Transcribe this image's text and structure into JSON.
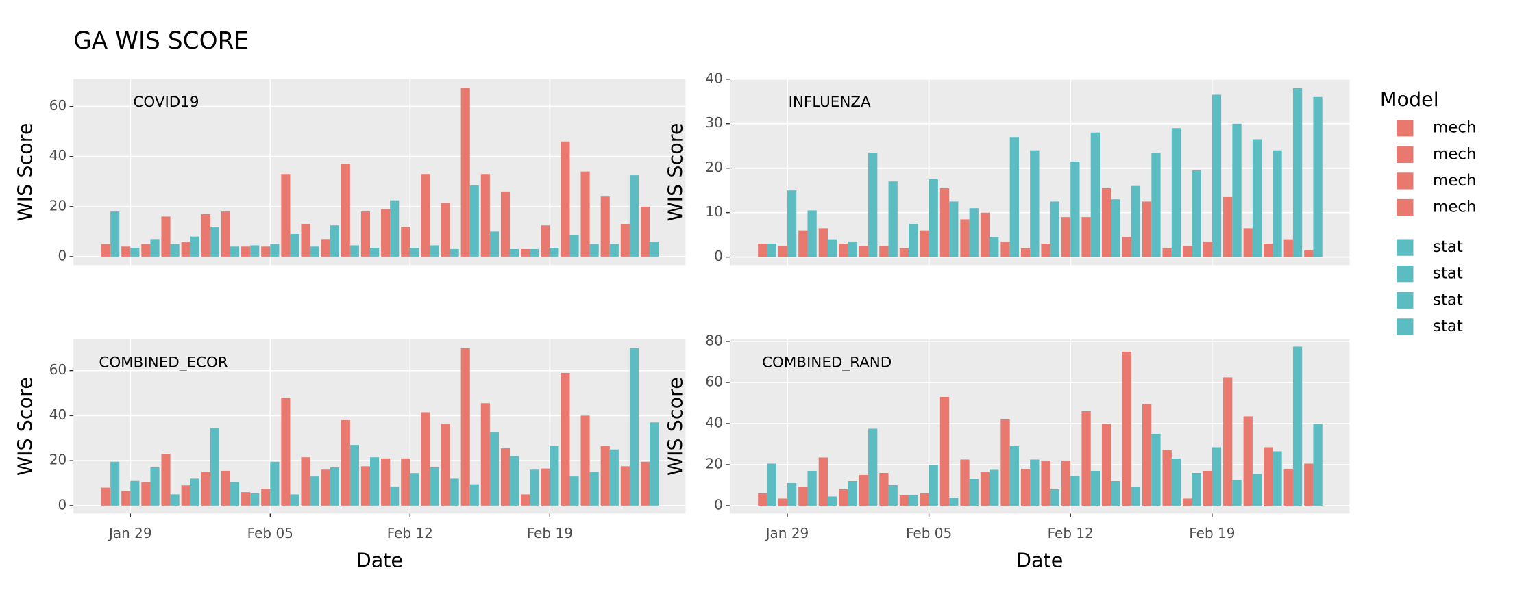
{
  "title": "GA WIS SCORE",
  "legend": {
    "title": "Model",
    "entries": [
      {
        "name": "mech",
        "color": "#e9786f"
      },
      {
        "name": "mech",
        "color": "#e9786f"
      },
      {
        "name": "mech",
        "color": "#e9786f"
      },
      {
        "name": "mech",
        "color": "#e9786f"
      },
      {
        "name": "stat",
        "color": "#5bbdc2"
      },
      {
        "name": "stat",
        "color": "#5bbdc2"
      },
      {
        "name": "stat",
        "color": "#5bbdc2"
      },
      {
        "name": "stat",
        "color": "#5bbdc2"
      }
    ]
  },
  "chart_data": [
    {
      "type": "bar",
      "title": "COVID19",
      "y_label": "WIS Score",
      "grid": true,
      "categories": [
        "Jan 28",
        "Jan 29",
        "Jan 30",
        "Jan 31",
        "Feb 01",
        "Feb 02",
        "Feb 03",
        "Feb 04",
        "Feb 05",
        "Feb 06",
        "Feb 07",
        "Feb 08",
        "Feb 09",
        "Feb 10",
        "Feb 11",
        "Feb 12",
        "Feb 13",
        "Feb 14",
        "Feb 15",
        "Feb 16",
        "Feb 17",
        "Feb 18",
        "Feb 19",
        "Feb 20",
        "Feb 21",
        "Feb 22",
        "Feb 23",
        "Feb 24"
      ],
      "ylim": [
        -3.4,
        70.9
      ],
      "yticks": [
        0,
        20,
        40,
        60
      ],
      "series": [
        {
          "name": "mech",
          "color": "#e9786f",
          "values": [
            5,
            4,
            5,
            16,
            6,
            17,
            18,
            4,
            4,
            33,
            13,
            7,
            37,
            18,
            19,
            12,
            33,
            21.5,
            67.5,
            33,
            26,
            3,
            12.5,
            46,
            34,
            24,
            13,
            20
          ]
        },
        {
          "name": "stat",
          "color": "#5bbdc2",
          "values": [
            18,
            3.5,
            7,
            5,
            8,
            12,
            4,
            4.5,
            5,
            9,
            4,
            12.5,
            4.5,
            3.5,
            22.5,
            3.5,
            4.5,
            3,
            28.5,
            10,
            3,
            3,
            3.5,
            8.5,
            5,
            5,
            32.5,
            6
          ]
        }
      ]
    },
    {
      "type": "bar",
      "title": "INFLUENZA",
      "y_label": "WIS Score",
      "grid": true,
      "categories": [
        "Jan 28",
        "Jan 29",
        "Jan 30",
        "Jan 31",
        "Feb 01",
        "Feb 02",
        "Feb 03",
        "Feb 04",
        "Feb 05",
        "Feb 06",
        "Feb 07",
        "Feb 08",
        "Feb 09",
        "Feb 10",
        "Feb 11",
        "Feb 12",
        "Feb 13",
        "Feb 14",
        "Feb 15",
        "Feb 16",
        "Feb 17",
        "Feb 18",
        "Feb 19",
        "Feb 20",
        "Feb 21",
        "Feb 22",
        "Feb 23",
        "Feb 24"
      ],
      "ylim": [
        -1.8,
        40
      ],
      "yticks": [
        0,
        10,
        20,
        30,
        40
      ],
      "series": [
        {
          "name": "mech",
          "color": "#e9786f",
          "values": [
            3,
            2.5,
            6,
            6.5,
            3,
            2.5,
            2.5,
            2,
            6,
            15.5,
            8.5,
            10,
            3.5,
            2,
            3,
            9,
            9,
            15.5,
            4.5,
            12.5,
            2,
            2.5,
            3.5,
            13.5,
            6.5,
            3,
            4,
            1.5
          ]
        },
        {
          "name": "stat",
          "color": "#5bbdc2",
          "values": [
            3,
            15,
            10.5,
            4,
            3.5,
            23.5,
            17,
            7.5,
            17.5,
            12.5,
            11,
            4.5,
            27,
            24,
            12.5,
            21.5,
            28,
            13,
            16,
            23.5,
            29,
            19.5,
            36.5,
            30,
            26.5,
            24,
            38,
            36
          ]
        }
      ]
    },
    {
      "type": "bar",
      "title": "COMBINED_ECOR",
      "x_label": "Date",
      "y_label": "WIS Score",
      "grid": true,
      "categories": [
        "Jan 28",
        "Jan 29",
        "Jan 30",
        "Jan 31",
        "Feb 01",
        "Feb 02",
        "Feb 03",
        "Feb 04",
        "Feb 05",
        "Feb 06",
        "Feb 07",
        "Feb 08",
        "Feb 09",
        "Feb 10",
        "Feb 11",
        "Feb 12",
        "Feb 13",
        "Feb 14",
        "Feb 15",
        "Feb 16",
        "Feb 17",
        "Feb 18",
        "Feb 19",
        "Feb 20",
        "Feb 21",
        "Feb 22",
        "Feb 23",
        "Feb 24"
      ],
      "xticks": [
        "Jan 29",
        "Feb 05",
        "Feb 12",
        "Feb 19"
      ],
      "ylim": [
        -3.5,
        73.9
      ],
      "yticks": [
        0,
        20,
        40,
        60
      ],
      "series": [
        {
          "name": "mech",
          "color": "#e9786f",
          "values": [
            8,
            6.5,
            10.5,
            23,
            9,
            15,
            15.5,
            6,
            7.5,
            48,
            21.5,
            16,
            38,
            17.5,
            21,
            21,
            41.5,
            36.5,
            70,
            45.5,
            25.5,
            5,
            16.5,
            59,
            40,
            26.5,
            17.5,
            19.5
          ]
        },
        {
          "name": "stat",
          "color": "#5bbdc2",
          "values": [
            19.5,
            11,
            17,
            5,
            12,
            34.5,
            10.5,
            5.5,
            19.5,
            5,
            13,
            17,
            27,
            21.5,
            8.5,
            14.5,
            17,
            12,
            9.5,
            32.5,
            22,
            16,
            26.5,
            13,
            15,
            25,
            70,
            37
          ]
        }
      ]
    },
    {
      "type": "bar",
      "title": "COMBINED_RAND",
      "x_label": "Date",
      "y_label": "WIS Score",
      "grid": true,
      "categories": [
        "Jan 28",
        "Jan 29",
        "Jan 30",
        "Jan 31",
        "Feb 01",
        "Feb 02",
        "Feb 03",
        "Feb 04",
        "Feb 05",
        "Feb 06",
        "Feb 07",
        "Feb 08",
        "Feb 09",
        "Feb 10",
        "Feb 11",
        "Feb 12",
        "Feb 13",
        "Feb 14",
        "Feb 15",
        "Feb 16",
        "Feb 17",
        "Feb 18",
        "Feb 19",
        "Feb 20",
        "Feb 21",
        "Feb 22",
        "Feb 23",
        "Feb 24"
      ],
      "xticks": [
        "Jan 29",
        "Feb 05",
        "Feb 12",
        "Feb 19"
      ],
      "ylim": [
        -3.8,
        81
      ],
      "yticks": [
        0,
        20,
        40,
        60,
        80
      ],
      "series": [
        {
          "name": "mech",
          "color": "#e9786f",
          "values": [
            6,
            3.5,
            9,
            23.5,
            8,
            15,
            16,
            5,
            6,
            53,
            22.5,
            16.5,
            42,
            18,
            22,
            22,
            46,
            40,
            75,
            49.5,
            27,
            3.5,
            17,
            62.5,
            43.5,
            28.5,
            18,
            20.5
          ]
        },
        {
          "name": "stat",
          "color": "#5bbdc2",
          "values": [
            20.5,
            11,
            17,
            4.5,
            12,
            37.5,
            10,
            5,
            20,
            4,
            13,
            17.5,
            29,
            22.5,
            8,
            14.5,
            17,
            12,
            9,
            35,
            23,
            16,
            28.5,
            12.5,
            15.5,
            26.5,
            77.5,
            40
          ]
        }
      ]
    }
  ]
}
